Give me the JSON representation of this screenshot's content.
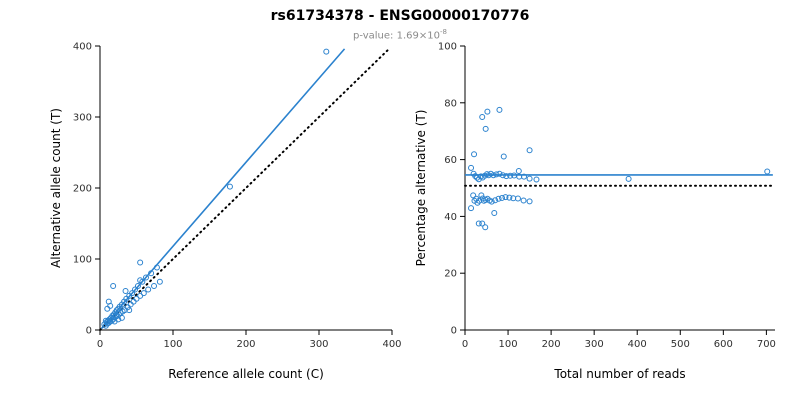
{
  "header": {
    "title": "rs61734378 - ENSG00000170776",
    "pvalue_label": "p-value: ",
    "pvalue_base": "1.69×10",
    "pvalue_exponent": "-8"
  },
  "colors": {
    "accent": "#2b82ce",
    "identity": "#000000",
    "subtitle": "#8a8a8a",
    "axis": "#000000"
  },
  "chart_data": [
    {
      "type": "scatter",
      "title": "",
      "xlabel": "Reference allele count (C)",
      "ylabel": "Alternative allele count (T)",
      "xlim": [
        0,
        400
      ],
      "ylim": [
        0,
        400
      ],
      "xticks": [
        0,
        100,
        200,
        300,
        400
      ],
      "yticks": [
        0,
        100,
        200,
        300,
        400
      ],
      "grid": false,
      "legend": "none",
      "points": [
        [
          6,
          8
        ],
        [
          8,
          6
        ],
        [
          9,
          11
        ],
        [
          10,
          9
        ],
        [
          11,
          13
        ],
        [
          12,
          10
        ],
        [
          13,
          15
        ],
        [
          14,
          12
        ],
        [
          15,
          17
        ],
        [
          16,
          13
        ],
        [
          17,
          20
        ],
        [
          18,
          15
        ],
        [
          19,
          22
        ],
        [
          20,
          18
        ],
        [
          21,
          25
        ],
        [
          22,
          19
        ],
        [
          23,
          28
        ],
        [
          24,
          20
        ],
        [
          25,
          30
        ],
        [
          26,
          22
        ],
        [
          27,
          33
        ],
        [
          28,
          24
        ],
        [
          30,
          36
        ],
        [
          31,
          26
        ],
        [
          33,
          40
        ],
        [
          34,
          28
        ],
        [
          36,
          44
        ],
        [
          38,
          32
        ],
        [
          40,
          48
        ],
        [
          42,
          36
        ],
        [
          44,
          52
        ],
        [
          46,
          40
        ],
        [
          48,
          57
        ],
        [
          50,
          44
        ],
        [
          52,
          62
        ],
        [
          55,
          48
        ],
        [
          58,
          68
        ],
        [
          60,
          52
        ],
        [
          63,
          74
        ],
        [
          66,
          57
        ],
        [
          70,
          80
        ],
        [
          74,
          62
        ],
        [
          78,
          88
        ],
        [
          82,
          68
        ],
        [
          14,
          34
        ],
        [
          12,
          40
        ],
        [
          10,
          30
        ],
        [
          20,
          12
        ],
        [
          25,
          15
        ],
        [
          30,
          17
        ],
        [
          35,
          55
        ],
        [
          40,
          28
        ],
        [
          178,
          202
        ],
        [
          310,
          392
        ],
        [
          55,
          70
        ],
        [
          8,
          13
        ],
        [
          18,
          62
        ],
        [
          55,
          95
        ]
      ],
      "lines": [
        {
          "style": "solid",
          "color": "accent",
          "x1": 2,
          "y1": 2,
          "x2": 335,
          "y2": 396
        },
        {
          "style": "dotted",
          "color": "identity",
          "x1": 0,
          "y1": 0,
          "x2": 397,
          "y2": 397
        }
      ]
    },
    {
      "type": "scatter",
      "title": "",
      "xlabel": "Total number of reads",
      "ylabel": "Percentage alternative (T)",
      "xlim": [
        0,
        720
      ],
      "ylim": [
        0,
        100
      ],
      "xticks": [
        0,
        100,
        200,
        300,
        400,
        500,
        600,
        700
      ],
      "yticks": [
        0,
        20,
        40,
        60,
        80,
        100
      ],
      "grid": false,
      "legend": "none",
      "points": [
        [
          14,
          57.1
        ],
        [
          14,
          42.9
        ],
        [
          20,
          55.0
        ],
        [
          19,
          47.4
        ],
        [
          24,
          54.2
        ],
        [
          22,
          45.5
        ],
        [
          28,
          53.6
        ],
        [
          26,
          46.2
        ],
        [
          32,
          53.1
        ],
        [
          29,
          44.8
        ],
        [
          37,
          54.1
        ],
        [
          33,
          45.5
        ],
        [
          41,
          53.7
        ],
        [
          38,
          47.4
        ],
        [
          46,
          54.3
        ],
        [
          41,
          46.3
        ],
        [
          51,
          54.9
        ],
        [
          44,
          45.5
        ],
        [
          55,
          54.5
        ],
        [
          48,
          45.8
        ],
        [
          60,
          55.0
        ],
        [
          52,
          46.2
        ],
        [
          66,
          54.5
        ],
        [
          57,
          45.6
        ],
        [
          73,
          54.8
        ],
        [
          62,
          45.2
        ],
        [
          80,
          55.0
        ],
        [
          70,
          45.7
        ],
        [
          88,
          54.5
        ],
        [
          78,
          46.2
        ],
        [
          96,
          54.2
        ],
        [
          86,
          46.5
        ],
        [
          105,
          54.3
        ],
        [
          94,
          46.8
        ],
        [
          114,
          54.4
        ],
        [
          103,
          46.6
        ],
        [
          126,
          54.0
        ],
        [
          112,
          46.4
        ],
        [
          137,
          54.0
        ],
        [
          123,
          46.3
        ],
        [
          150,
          53.3
        ],
        [
          136,
          45.6
        ],
        [
          166,
          53.0
        ],
        [
          150,
          45.3
        ],
        [
          48,
          70.8
        ],
        [
          52,
          76.9
        ],
        [
          40,
          75.0
        ],
        [
          32,
          37.5
        ],
        [
          40,
          37.5
        ],
        [
          47,
          36.2
        ],
        [
          90,
          61.1
        ],
        [
          68,
          41.2
        ],
        [
          380,
          53.2
        ],
        [
          702,
          55.8
        ],
        [
          125,
          56.0
        ],
        [
          21,
          61.9
        ],
        [
          80,
          77.5
        ],
        [
          150,
          63.3
        ]
      ],
      "lines": [
        {
          "style": "solid",
          "color": "accent",
          "x1": 0,
          "y1": 54.6,
          "x2": 715,
          "y2": 54.6
        },
        {
          "style": "dotted",
          "color": "identity",
          "x1": 0,
          "y1": 50.8,
          "x2": 715,
          "y2": 50.8
        }
      ]
    }
  ]
}
